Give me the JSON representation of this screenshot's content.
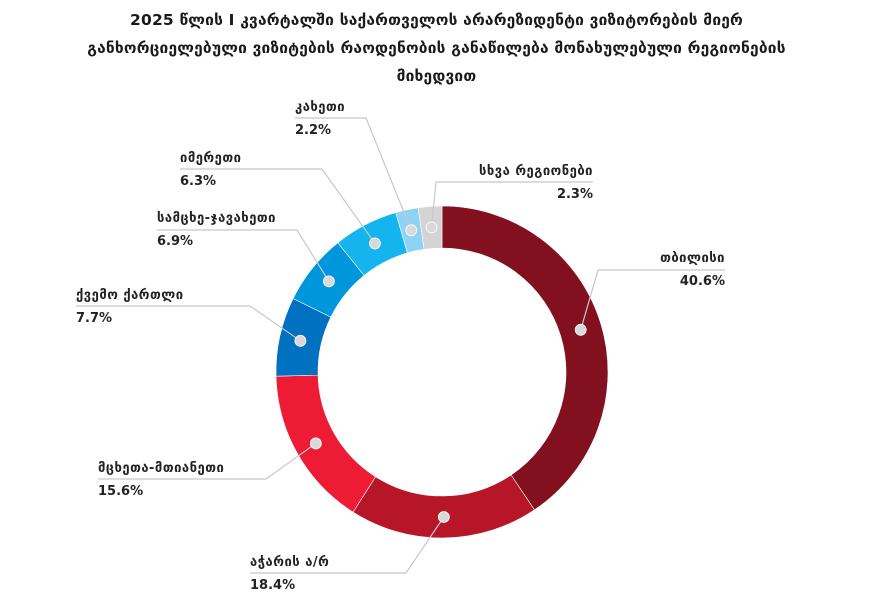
{
  "chart_data": {
    "type": "pie",
    "variant": "donut",
    "title_lines": [
      "2025 წლის I კვარტალში საქართველოს არარეზიდენტი ვიზიტორების მიერ",
      "განხორციელებული ვიზიტების რაოდენობის განაწილება მონახულებული რეგიონების",
      "მიხედვით"
    ],
    "slices": [
      {
        "label": "თბილისი",
        "value": 40.6,
        "value_label": "40.6%",
        "color": "#83101f"
      },
      {
        "label": "აჭარის ა/რ",
        "value": 18.4,
        "value_label": "18.4%",
        "color": "#b71628"
      },
      {
        "label": "მცხეთა-მთიანეთი",
        "value": 15.6,
        "value_label": "15.6%",
        "color": "#ed1c34"
      },
      {
        "label": "ქვემო ქართლი",
        "value": 7.7,
        "value_label": "7.7%",
        "color": "#0070c0"
      },
      {
        "label": "სამცხე-ჯავახეთი",
        "value": 6.9,
        "value_label": "6.9%",
        "color": "#0096dc"
      },
      {
        "label": "იმერეთი",
        "value": 6.3,
        "value_label": "6.3%",
        "color": "#14b4ee"
      },
      {
        "label": "კახეთი",
        "value": 2.2,
        "value_label": "2.2%",
        "color": "#8ed3f5"
      },
      {
        "label": "სხვა რეგიონები",
        "value": 2.3,
        "value_label": "2.3%",
        "color": "#d4d4d4"
      }
    ],
    "legend": "none",
    "data_labels": "outside-with-leader-lines"
  }
}
